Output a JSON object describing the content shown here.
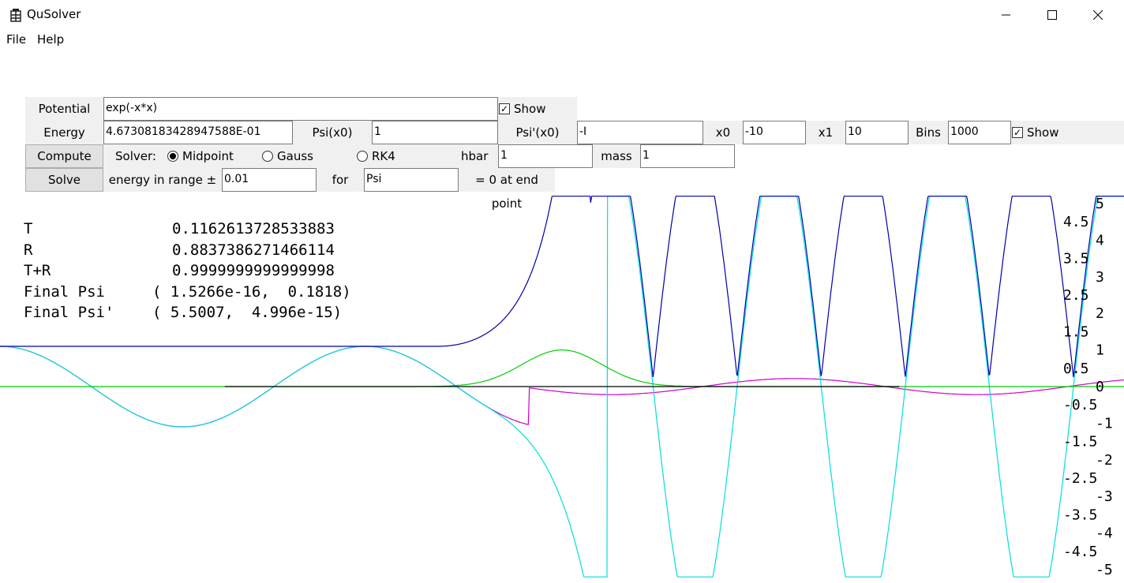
{
  "window": {
    "title": "QuSolver"
  },
  "menu": {
    "file": "File",
    "help": "Help"
  },
  "form": {
    "potential_label": "Potential",
    "potential_value": "exp(-x*x)",
    "show_label": "Show",
    "energy_label": "Energy",
    "energy_value": "4.67308183428947588E-01",
    "psi_label": "Psi(x0)",
    "psi_value": "1",
    "dpsi_label": "Psi'(x0)",
    "dpsi_value": "-I",
    "x0_label": "x0",
    "x0_value": "-10",
    "x1_label": "x1",
    "x1_value": "10",
    "bins_label": "Bins",
    "bins_value": "1000",
    "show2_label": "Show",
    "compute_label": "Compute",
    "solver_label": "Solver:",
    "solver_midpoint": "Midpoint",
    "solver_gauss": "Gauss",
    "solver_rk4": "RK4",
    "hbar_label": "hbar",
    "hbar_value": "1",
    "mass_label": "mass",
    "mass_value": "1",
    "solve_label": "Solve",
    "range_label": "energy in range ±",
    "range_value": "0.01",
    "for_label": "for",
    "for_value": "Psi",
    "endpoint_label": "= 0 at end point"
  },
  "results": [
    {
      "name": "T",
      "value": "0.1162613728533883"
    },
    {
      "name": "R",
      "value": "0.8837386271466114"
    },
    {
      "name": "T+R",
      "value": "0.9999999999999998"
    },
    {
      "name": "Final Psi",
      "value": "( 1.5266e-16,  0.1818)"
    },
    {
      "name": "Final Psi'",
      "value": "( 5.5007,  4.996e-15)"
    }
  ],
  "chart_data": {
    "type": "line",
    "x": [
      -10,
      10
    ],
    "ylim": [
      -5,
      5
    ],
    "yticks": [
      "5",
      "4.5",
      "4",
      "3.5",
      "3",
      "2.5",
      "2",
      "1.5",
      "1",
      "0.5",
      "0",
      "-0.5",
      "-1",
      "-1.5",
      "-2",
      "-2.5",
      "-3",
      "-3.5",
      "-4",
      "-4.5",
      "-5"
    ],
    "series": [
      {
        "color": "#0000aa"
      },
      {
        "color": "#00dddd"
      },
      {
        "color": "#cc00cc"
      },
      {
        "color": "#00cc00"
      },
      {
        "color": "#000000"
      }
    ]
  }
}
